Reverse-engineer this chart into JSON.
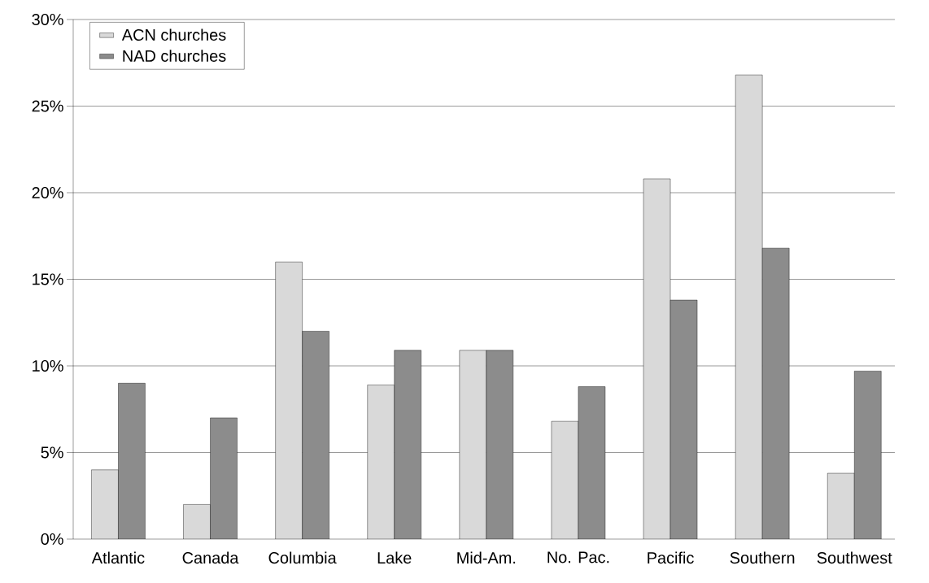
{
  "chart_data": {
    "type": "bar",
    "categories": [
      "Atlantic",
      "Canada",
      "Columbia",
      "Lake",
      "Mid-Am.",
      "No. Pac.",
      "Pacific",
      "Southern",
      "Southwest"
    ],
    "series": [
      {
        "name": "ACN churches",
        "color": "#d9d9d9",
        "values": [
          4,
          2,
          16,
          8.9,
          10.9,
          6.8,
          20.8,
          26.8,
          3.8
        ]
      },
      {
        "name": "NAD churches",
        "color": "#8c8c8c",
        "values": [
          9,
          7,
          12,
          10.9,
          10.9,
          8.8,
          13.8,
          16.8,
          9.7
        ]
      }
    ],
    "ylim": [
      0,
      30
    ],
    "yticks": [
      {
        "value": 0,
        "label": "0%"
      },
      {
        "value": 5,
        "label": "5%"
      },
      {
        "value": 10,
        "label": "10%"
      },
      {
        "value": 15,
        "label": "15%"
      },
      {
        "value": 20,
        "label": "20%"
      },
      {
        "value": 25,
        "label": "25%"
      },
      {
        "value": 30,
        "label": "30%"
      }
    ],
    "grid": "y",
    "legend": "top left"
  }
}
